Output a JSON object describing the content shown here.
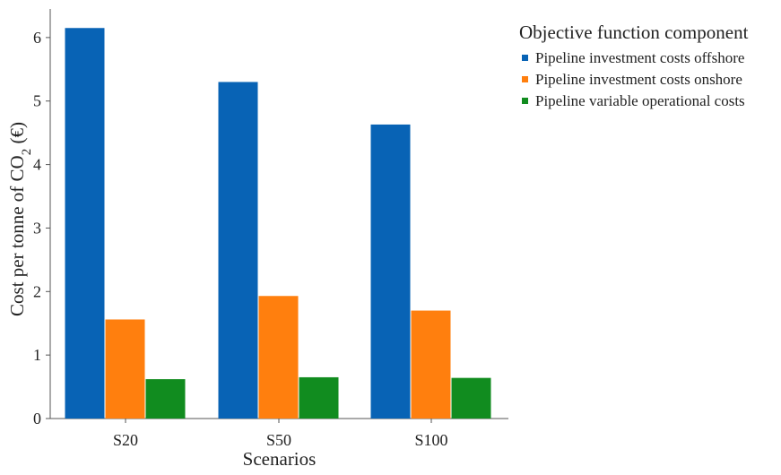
{
  "chart_data": {
    "type": "bar",
    "categories": [
      "S20",
      "S50",
      "S100"
    ],
    "series": [
      {
        "name": "Pipeline investment costs offshore",
        "values": [
          6.15,
          5.3,
          4.63
        ],
        "color": "#0863b5"
      },
      {
        "name": "Pipeline investment costs onshore",
        "values": [
          1.56,
          1.93,
          1.7
        ],
        "color": "#ff7f0e"
      },
      {
        "name": "Pipeline variable operational costs",
        "values": [
          0.62,
          0.65,
          0.64
        ],
        "color": "#118c1f"
      }
    ],
    "title": "",
    "xlabel": "Scenarios",
    "ylabel": "Cost per tonne of CO",
    "ylabel_subscript": "2",
    "ylabel_suffix": " (€)",
    "ylim": [
      0,
      6.45
    ],
    "yticks": [
      0,
      1,
      2,
      3,
      4,
      5,
      6
    ],
    "grid": false,
    "legend": {
      "title": "Objective function component",
      "placement": "top-right"
    }
  }
}
